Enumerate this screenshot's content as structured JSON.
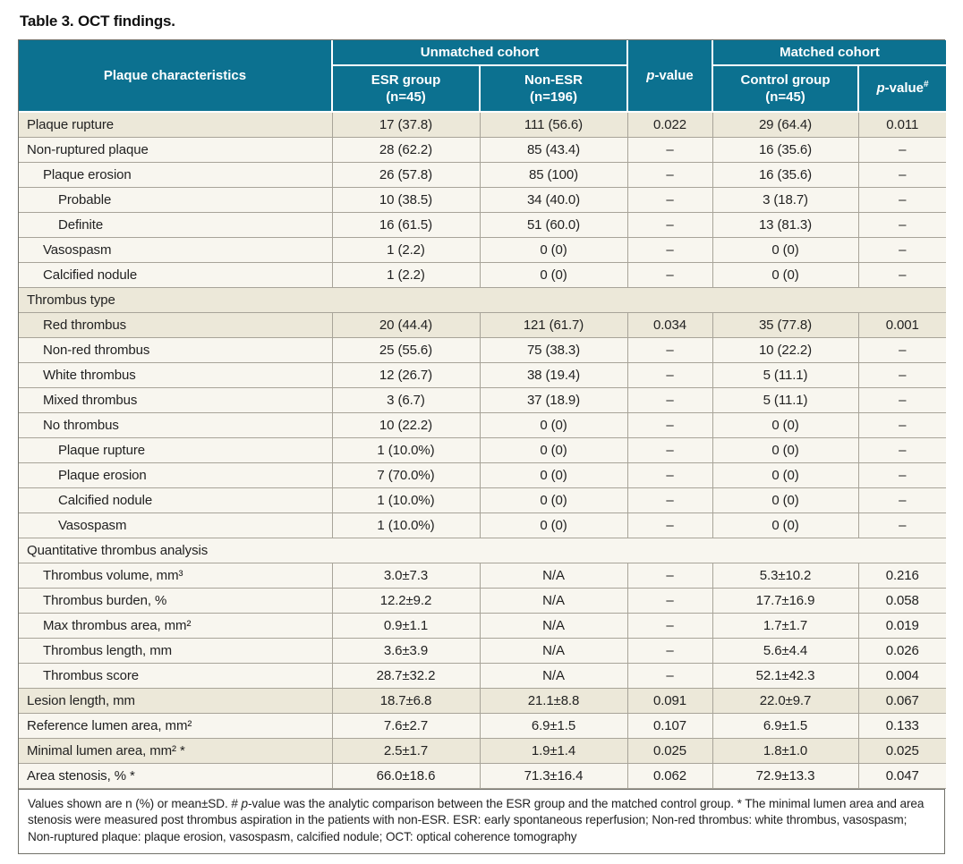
{
  "title": "Table 3. OCT findings.",
  "colors": {
    "header_bg": "#0c7190",
    "row_dark": "#ece8d9",
    "row_light": "#f8f6ef",
    "grid": "#a8a499",
    "outer_border": "#71716a"
  },
  "header": {
    "plaque": "Plaque characteristics",
    "group_unmatched": "Unmatched cohort",
    "group_matched": "Matched cohort",
    "esr_line1": "ESR group",
    "esr_line2": "(n=45)",
    "nonesr_line1": "Non-ESR",
    "nonesr_line2": "(n=196)",
    "control_line1": "Control group",
    "control_line2": "(n=45)",
    "p_italic": "p",
    "p_rest": "-value",
    "p2_italic": "p",
    "p2_rest": "-value",
    "p2_sup": "#"
  },
  "rows": [
    {
      "type": "data",
      "indent": 0,
      "shade": "dark",
      "label": "Plaque rupture",
      "esr": "17 (37.8)",
      "nonesr": "111 (56.6)",
      "p": "0.022",
      "control": "29 (64.4)",
      "p2": "0.011"
    },
    {
      "type": "data",
      "indent": 0,
      "shade": "light",
      "label": "Non-ruptured plaque",
      "esr": "28 (62.2)",
      "nonesr": "85 (43.4)",
      "p": "–",
      "control": "16 (35.6)",
      "p2": "–"
    },
    {
      "type": "data",
      "indent": 1,
      "shade": "light",
      "label": "Plaque erosion",
      "esr": "26 (57.8)",
      "nonesr": "85 (100)",
      "p": "–",
      "control": "16 (35.6)",
      "p2": "–"
    },
    {
      "type": "data",
      "indent": 2,
      "shade": "light",
      "label": "Probable",
      "esr": "10 (38.5)",
      "nonesr": "34 (40.0)",
      "p": "–",
      "control": "3 (18.7)",
      "p2": "–"
    },
    {
      "type": "data",
      "indent": 2,
      "shade": "light",
      "label": "Definite",
      "esr": "16 (61.5)",
      "nonesr": "51 (60.0)",
      "p": "–",
      "control": "13 (81.3)",
      "p2": "–"
    },
    {
      "type": "data",
      "indent": 1,
      "shade": "light",
      "label": "Vasospasm",
      "esr": "1 (2.2)",
      "nonesr": "0 (0)",
      "p": "–",
      "control": "0 (0)",
      "p2": "–"
    },
    {
      "type": "data",
      "indent": 1,
      "shade": "light",
      "label": "Calcified nodule",
      "esr": "1 (2.2)",
      "nonesr": "0 (0)",
      "p": "–",
      "control": "0 (0)",
      "p2": "–"
    },
    {
      "type": "section",
      "shade": "dark",
      "label": "Thrombus type"
    },
    {
      "type": "data",
      "indent": 1,
      "shade": "dark",
      "label": "Red thrombus",
      "esr": "20 (44.4)",
      "nonesr": "121 (61.7)",
      "p": "0.034",
      "control": "35 (77.8)",
      "p2": "0.001"
    },
    {
      "type": "data",
      "indent": 1,
      "shade": "light",
      "label": "Non-red thrombus",
      "esr": "25 (55.6)",
      "nonesr": "75 (38.3)",
      "p": "–",
      "control": "10 (22.2)",
      "p2": "–"
    },
    {
      "type": "data",
      "indent": 1,
      "shade": "light",
      "label": "White thrombus",
      "esr": "12 (26.7)",
      "nonesr": "38 (19.4)",
      "p": "–",
      "control": "5 (11.1)",
      "p2": "–"
    },
    {
      "type": "data",
      "indent": 1,
      "shade": "light",
      "label": "Mixed thrombus",
      "esr": "3 (6.7)",
      "nonesr": "37 (18.9)",
      "p": "–",
      "control": "5 (11.1)",
      "p2": "–"
    },
    {
      "type": "data",
      "indent": 1,
      "shade": "light",
      "label": "No thrombus",
      "esr": "10 (22.2)",
      "nonesr": "0 (0)",
      "p": "–",
      "control": "0 (0)",
      "p2": "–"
    },
    {
      "type": "data",
      "indent": 2,
      "shade": "light",
      "label": "Plaque rupture",
      "esr": "1 (10.0%)",
      "nonesr": "0 (0)",
      "p": "–",
      "control": "0 (0)",
      "p2": "–"
    },
    {
      "type": "data",
      "indent": 2,
      "shade": "light",
      "label": "Plaque erosion",
      "esr": "7 (70.0%)",
      "nonesr": "0 (0)",
      "p": "–",
      "control": "0 (0)",
      "p2": "–"
    },
    {
      "type": "data",
      "indent": 2,
      "shade": "light",
      "label": "Calcified nodule",
      "esr": "1 (10.0%)",
      "nonesr": "0 (0)",
      "p": "–",
      "control": "0 (0)",
      "p2": "–"
    },
    {
      "type": "data",
      "indent": 2,
      "shade": "light",
      "label": "Vasospasm",
      "esr": "1 (10.0%)",
      "nonesr": "0 (0)",
      "p": "–",
      "control": "0 (0)",
      "p2": "–"
    },
    {
      "type": "section",
      "shade": "light",
      "label": "Quantitative thrombus analysis"
    },
    {
      "type": "data",
      "indent": 1,
      "shade": "light",
      "label": "Thrombus volume, mm³",
      "esr": "3.0±7.3",
      "nonesr": "N/A",
      "p": "–",
      "control": "5.3±10.2",
      "p2": "0.216"
    },
    {
      "type": "data",
      "indent": 1,
      "shade": "light",
      "label": "Thrombus burden, %",
      "esr": "12.2±9.2",
      "nonesr": "N/A",
      "p": "–",
      "control": "17.7±16.9",
      "p2": "0.058"
    },
    {
      "type": "data",
      "indent": 1,
      "shade": "light",
      "label": "Max thrombus area, mm²",
      "esr": "0.9±1.1",
      "nonesr": "N/A",
      "p": "–",
      "control": "1.7±1.7",
      "p2": "0.019"
    },
    {
      "type": "data",
      "indent": 1,
      "shade": "light",
      "label": "Thrombus length, mm",
      "esr": "3.6±3.9",
      "nonesr": "N/A",
      "p": "–",
      "control": "5.6±4.4",
      "p2": "0.026"
    },
    {
      "type": "data",
      "indent": 1,
      "shade": "light",
      "label": "Thrombus score",
      "esr": "28.7±32.2",
      "nonesr": "N/A",
      "p": "–",
      "control": "52.1±42.3",
      "p2": "0.004"
    },
    {
      "type": "data",
      "indent": 0,
      "shade": "dark",
      "label": "Lesion length, mm",
      "esr": "18.7±6.8",
      "nonesr": "21.1±8.8",
      "p": "0.091",
      "control": "22.0±9.7",
      "p2": "0.067"
    },
    {
      "type": "data",
      "indent": 0,
      "shade": "light",
      "label": "Reference lumen area, mm²",
      "esr": "7.6±2.7",
      "nonesr": "6.9±1.5",
      "p": "0.107",
      "control": "6.9±1.5",
      "p2": "0.133"
    },
    {
      "type": "data",
      "indent": 0,
      "shade": "dark",
      "label": "Minimal lumen area, mm² *",
      "esr": "2.5±1.7",
      "nonesr": "1.9±1.4",
      "p": "0.025",
      "control": "1.8±1.0",
      "p2": "0.025"
    },
    {
      "type": "data",
      "indent": 0,
      "shade": "light",
      "label": "Area stenosis, % *",
      "esr": "66.0±18.6",
      "nonesr": "71.3±16.4",
      "p": "0.062",
      "control": "72.9±13.3",
      "p2": "0.047"
    }
  ],
  "footnote": {
    "pre": "Values shown are n (%) or mean±SD. # ",
    "p_italic": "p",
    "rest": "-value was the analytic comparison between the ESR group and the matched control group. * The minimal lumen area and area stenosis were measured post thrombus aspiration in the patients with non-ESR. ESR: early spontaneous reperfusion; Non-red thrombus: white thrombus, vasospasm; Non-ruptured plaque: plaque erosion, vasospasm, calcified nodule; OCT: optical coherence tomography"
  }
}
